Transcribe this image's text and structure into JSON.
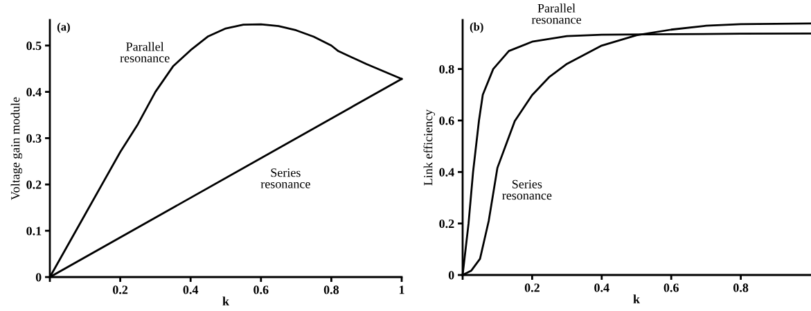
{
  "chart_data": [
    {
      "type": "line",
      "xlabel": "k",
      "ylabel": "Voltage gain module",
      "annotations": [
        "(a)"
      ],
      "xlim": [
        0,
        1
      ],
      "ylim": [
        0,
        0.555
      ],
      "xticks": [
        {
          "value": 0,
          "label": null
        },
        0.2,
        0.4,
        0.6,
        0.8,
        1
      ],
      "yticks": [
        0,
        0.1,
        0.2,
        0.3,
        0.4,
        0.5
      ],
      "grid": false,
      "legend": false,
      "marker": "none",
      "line_style": "solid",
      "series": [
        {
          "name": "Parallel resonance",
          "color": "#000000",
          "x": [
            0,
            0.1,
            0.2,
            0.25,
            0.3,
            0.35,
            0.4,
            0.45,
            0.5,
            0.55,
            0.6,
            0.65,
            0.7,
            0.75,
            0.8,
            0.82,
            0.9,
            1
          ],
          "values": [
            0,
            0.135,
            0.27,
            0.33,
            0.4,
            0.455,
            0.49,
            0.52,
            0.537,
            0.545,
            0.546,
            0.542,
            0.533,
            0.519,
            0.5,
            0.488,
            0.46,
            0.428
          ]
        },
        {
          "name": "Series resonance",
          "color": "#000000",
          "x": [
            0,
            1
          ],
          "values": [
            0,
            0.428
          ]
        }
      ]
    },
    {
      "type": "line",
      "xlabel": "k",
      "ylabel": "Link efficiency",
      "annotations": [
        "(b)"
      ],
      "xlim": [
        0,
        1
      ],
      "ylim": [
        0,
        0.99
      ],
      "xticks": [
        {
          "value": 0,
          "label": null
        },
        0.2,
        0.4,
        0.6,
        0.8
      ],
      "yticks": [
        0,
        0.2,
        0.4,
        0.6,
        0.8
      ],
      "grid": false,
      "legend": false,
      "marker": "none",
      "line_style": "solid",
      "series": [
        {
          "name": "Parallel resonance",
          "color": "#000000",
          "x": [
            0,
            0.017,
            0.03,
            0.047,
            0.058,
            0.088,
            0.133,
            0.2,
            0.3,
            0.4,
            0.6,
            0.8,
            1
          ],
          "values": [
            0,
            0.2,
            0.4,
            0.6,
            0.7,
            0.8,
            0.87,
            0.906,
            0.928,
            0.933,
            0.935,
            0.937,
            0.938
          ]
        },
        {
          "name": "Series resonance",
          "color": "#000000",
          "x": [
            0,
            0.025,
            0.05,
            0.075,
            0.1,
            0.125,
            0.15,
            0.2,
            0.25,
            0.3,
            0.4,
            0.5,
            0.6,
            0.7,
            0.8,
            1
          ],
          "values": [
            0,
            0.017,
            0.063,
            0.21,
            0.416,
            0.507,
            0.598,
            0.699,
            0.77,
            0.82,
            0.891,
            0.931,
            0.953,
            0.968,
            0.974,
            0.977
          ]
        }
      ]
    }
  ]
}
